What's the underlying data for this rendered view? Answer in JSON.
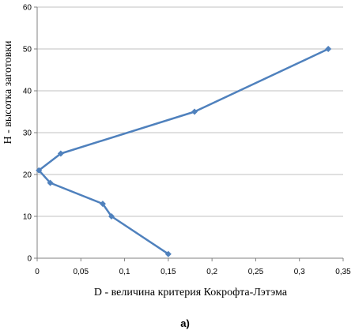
{
  "chart_data": {
    "type": "line",
    "xlabel": "D - величина критерия Кокрофта-Лэтэма",
    "ylabel": "Н - высотка заготовки",
    "caption": "а)",
    "xlim": [
      0,
      0.35
    ],
    "ylim": [
      0,
      60
    ],
    "x_ticks": [
      "0",
      "0,05",
      "0,1",
      "0,15",
      "0,2",
      "0,25",
      "0,3",
      "0,35"
    ],
    "y_ticks": [
      "0",
      "10",
      "20",
      "30",
      "40",
      "50",
      "60"
    ],
    "grid": "horizontal",
    "series_color": "#4f81bd",
    "points": [
      {
        "x": 0.15,
        "y": 1
      },
      {
        "x": 0.085,
        "y": 10
      },
      {
        "x": 0.075,
        "y": 13
      },
      {
        "x": 0.015,
        "y": 18
      },
      {
        "x": 0.002,
        "y": 21
      },
      {
        "x": 0.027,
        "y": 25
      },
      {
        "x": 0.18,
        "y": 35
      },
      {
        "x": 0.333,
        "y": 50
      }
    ]
  }
}
